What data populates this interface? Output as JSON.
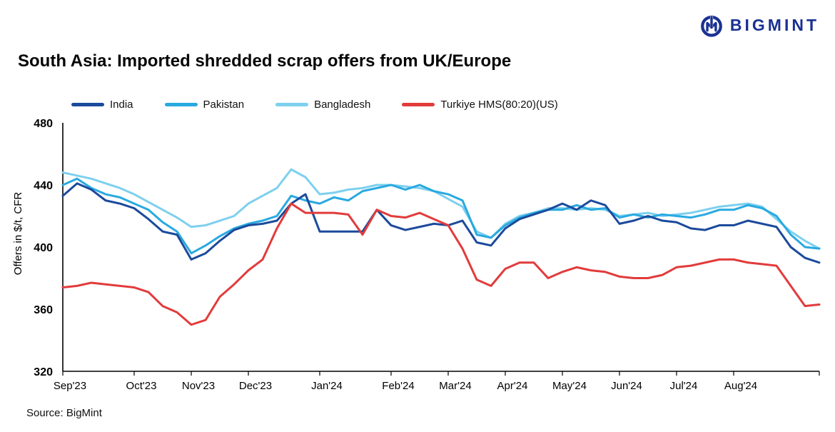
{
  "logo": {
    "text": "BIGMINT",
    "color": "#1a3192"
  },
  "title": "South Asia: Imported shredded scrap offers from UK/Europe",
  "source": "Source: BigMint",
  "chart_data": {
    "type": "line",
    "title": "South Asia: Imported shredded scrap offers from UK/Europe",
    "xlabel": "",
    "ylabel": "Offers in $/t, CFR",
    "ylim": [
      320,
      480
    ],
    "yticks": [
      320,
      360,
      400,
      440,
      480
    ],
    "grid": false,
    "legend_position": "top",
    "x_tick_labels": [
      "Sep'23",
      "Oct'23",
      "Nov'23",
      "Dec'23",
      "Jan'24",
      "Feb'24",
      "Mar'24",
      "Apr'24",
      "May'24",
      "Jun'24",
      "Jul'24",
      "Aug'24"
    ],
    "month_start_indices": [
      0,
      5,
      9,
      13,
      18,
      23,
      27,
      31,
      35,
      39,
      43,
      47
    ],
    "x_unit": "weekly observations, Sep 2023 - Sep 2024",
    "series": [
      {
        "name": "India",
        "color": "#1b4a9b",
        "values": [
          433,
          441,
          437,
          430,
          428,
          425,
          418,
          410,
          408,
          392,
          396,
          404,
          411,
          414,
          415,
          417,
          428,
          434,
          410,
          410,
          410,
          410,
          424,
          414,
          411,
          413,
          415,
          414,
          417,
          403,
          401,
          412,
          418,
          421,
          424,
          428,
          424,
          430,
          427,
          415,
          417,
          420,
          417,
          416,
          412,
          411,
          414,
          414,
          417,
          415,
          413,
          400,
          393,
          390
        ]
      },
      {
        "name": "Pakistan",
        "color": "#29a9e1",
        "values": [
          440,
          444,
          438,
          434,
          432,
          428,
          424,
          416,
          410,
          396,
          401,
          407,
          412,
          415,
          417,
          420,
          433,
          430,
          428,
          432,
          430,
          436,
          438,
          440,
          437,
          440,
          436,
          434,
          430,
          408,
          406,
          414,
          419,
          422,
          424,
          424,
          427,
          424,
          425,
          419,
          421,
          419,
          421,
          420,
          419,
          421,
          424,
          424,
          427,
          425,
          420,
          408,
          400,
          399
        ]
      },
      {
        "name": "Bangladesh",
        "color": "#7ed0ee",
        "values": [
          448,
          446,
          444,
          441,
          438,
          434,
          429,
          424,
          419,
          413,
          414,
          417,
          420,
          428,
          433,
          438,
          450,
          445,
          434,
          435,
          437,
          438,
          440,
          440,
          439,
          438,
          436,
          431,
          426,
          410,
          406,
          415,
          420,
          422,
          425,
          425,
          424,
          425,
          424,
          420,
          421,
          422,
          420,
          421,
          422,
          424,
          426,
          427,
          428,
          426,
          418,
          410,
          404,
          399
        ]
      },
      {
        "name": "Turkiye HMS(80:20)(US)",
        "color": "#e23b3b",
        "values": [
          374,
          375,
          377,
          376,
          375,
          374,
          371,
          362,
          358,
          350,
          353,
          368,
          376,
          385,
          392,
          412,
          428,
          422,
          422,
          422,
          421,
          408,
          424,
          420,
          419,
          422,
          418,
          414,
          399,
          379,
          375,
          386,
          390,
          390,
          380,
          384,
          387,
          385,
          384,
          381,
          380,
          380,
          382,
          387,
          388,
          390,
          392,
          392,
          390,
          389,
          388,
          375,
          362,
          363
        ]
      }
    ],
    "axis_color": "#000000"
  }
}
